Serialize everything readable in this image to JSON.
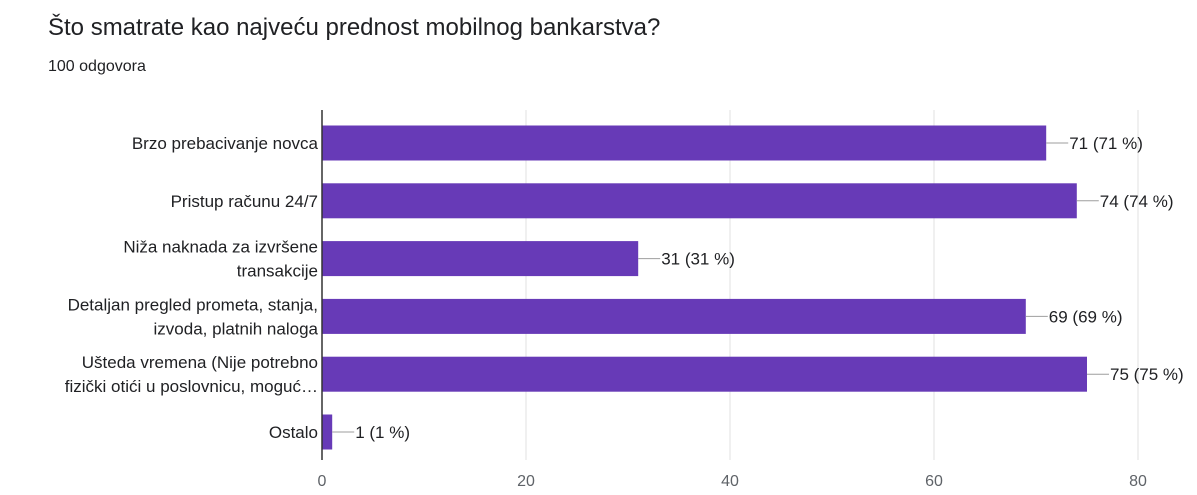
{
  "header": {
    "question": "Što smatrate kao najveću prednost mobilnog bankarstva?",
    "responses": "100 odgovora"
  },
  "chart_data": {
    "type": "bar",
    "orientation": "horizontal",
    "title": "Što smatrate kao najveću prednost mobilnog bankarstva?",
    "subtitle": "100 odgovora",
    "categories": [
      [
        "Brzo prebacivanje novca"
      ],
      [
        "Pristup računu 24/7"
      ],
      [
        "Niža naknada za izvršene",
        "transakcije"
      ],
      [
        "Detaljan pregled prometa, stanja,",
        "izvoda, platnih naloga"
      ],
      [
        "Ušteda vremena (Nije potrebno",
        "fizički otići u poslovnicu, moguć…"
      ],
      [
        "Ostalo"
      ]
    ],
    "values": [
      71,
      74,
      31,
      69,
      75,
      1
    ],
    "value_labels": [
      "71 (71 %)",
      "74 (74 %)",
      "31 (31 %)",
      "69 (69 %)",
      "75 (75 %)",
      "1 (1 %)"
    ],
    "xlim": [
      0,
      80
    ],
    "x_ticks": [
      0,
      20,
      40,
      60,
      80
    ],
    "grid": true,
    "legend": "none",
    "bar_color": "#673ab7",
    "grid_color": "#e0e0e0",
    "axis_color": "#333333"
  }
}
